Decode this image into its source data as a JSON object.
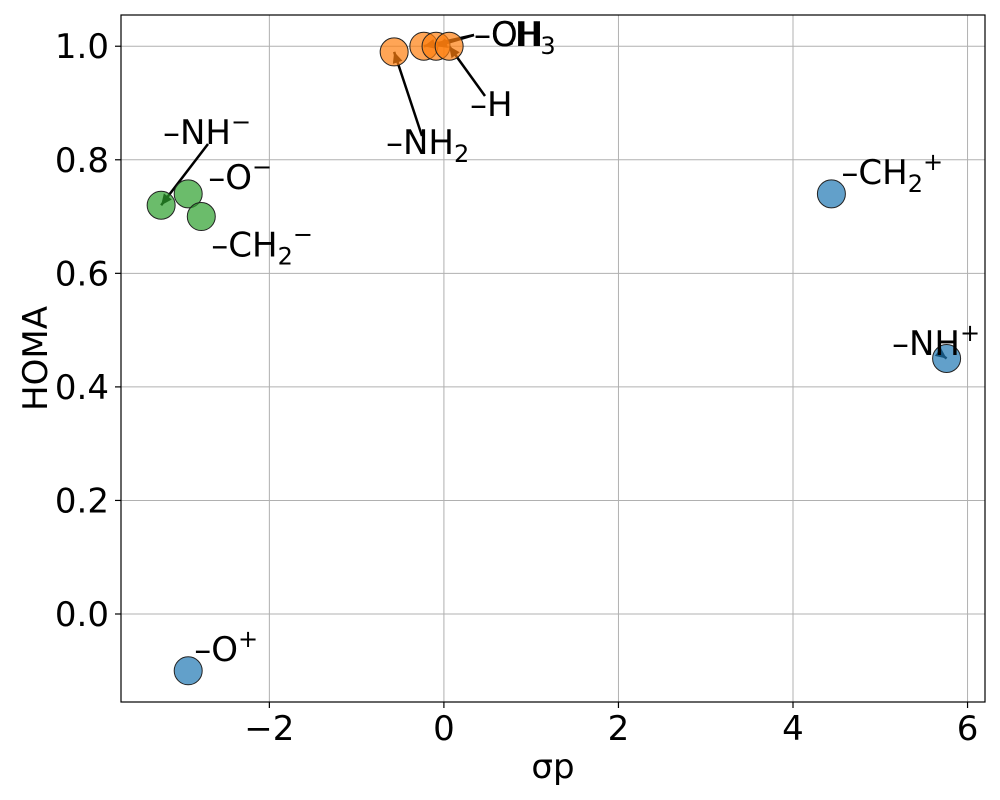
{
  "chart_data": {
    "type": "scatter",
    "title": "",
    "xlabel": "σp",
    "ylabel": "HOMA",
    "xlim": [
      -3.7,
      6.2
    ],
    "ylim": [
      -0.155,
      1.055
    ],
    "x_ticks": [
      -2,
      0,
      2,
      4,
      6
    ],
    "y_ticks": [
      0.0,
      0.2,
      0.4,
      0.6,
      0.8,
      1.0
    ],
    "x_tick_labels": [
      "−2",
      "0",
      "2",
      "4",
      "6"
    ],
    "y_tick_labels": [
      "0.0",
      "0.2",
      "0.4",
      "0.6",
      "0.8",
      "1.0"
    ],
    "grid": true,
    "legend": "none",
    "groups": [
      {
        "color": "#1f77b4",
        "points": [
          {
            "id": "ch2-plus",
            "x": 4.44,
            "y": 0.74,
            "label": "–CH",
            "sub": "2",
            "sup": "+"
          },
          {
            "id": "nh-plus",
            "x": 5.76,
            "y": 0.45,
            "label": "–NH",
            "sub": "",
            "sup": "+"
          },
          {
            "id": "o-plus",
            "x": -2.93,
            "y": -0.1,
            "label": "–O",
            "sub": "",
            "sup": "+"
          }
        ]
      },
      {
        "color": "#ff7f0e",
        "points": [
          {
            "id": "nh2",
            "x": -0.57,
            "y": 0.99,
            "label": "–NH",
            "sub": "2",
            "sup": ""
          },
          {
            "id": "oh",
            "x": -0.23,
            "y": 1.0,
            "label": "–OH",
            "sub": "",
            "sup": ""
          },
          {
            "id": "ch3",
            "x": -0.09,
            "y": 1.0,
            "label": "–CH",
            "sub": "3",
            "sup": ""
          },
          {
            "id": "h",
            "x": 0.06,
            "y": 1.0,
            "label": "–H",
            "sub": "",
            "sup": ""
          }
        ]
      },
      {
        "color": "#2ca02c",
        "points": [
          {
            "id": "nh-minus",
            "x": -3.24,
            "y": 0.72,
            "label": "–NH",
            "sub": "",
            "sup": "−"
          },
          {
            "id": "o-minus",
            "x": -2.93,
            "y": 0.74,
            "label": "–O",
            "sub": "",
            "sup": "−"
          },
          {
            "id": "ch2-minus",
            "x": -2.78,
            "y": 0.7,
            "label": "–CH",
            "sub": "2",
            "sup": "−"
          }
        ]
      }
    ]
  }
}
